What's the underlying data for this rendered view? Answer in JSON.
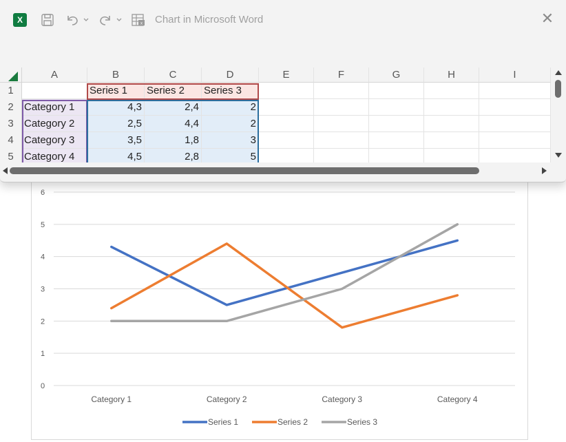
{
  "window": {
    "title": "Chart in Microsoft Word",
    "app_icon_letter": "X",
    "close_glyph": "✕"
  },
  "icons": {
    "save": "save-icon",
    "undo": "undo-icon",
    "redo": "redo-icon",
    "edit_data": "edit-data-in-excel-icon"
  },
  "grid": {
    "columns": [
      "A",
      "B",
      "C",
      "D",
      "E",
      "F",
      "G",
      "H",
      "I"
    ],
    "rows": [
      "1",
      "2",
      "3",
      "4",
      "5"
    ],
    "header": [
      "",
      "Series 1",
      "Series 2",
      "Series 3"
    ],
    "data": [
      [
        "Category 1",
        "4,3",
        "2,4",
        "2"
      ],
      [
        "Category 2",
        "2,5",
        "4,4",
        "2"
      ],
      [
        "Category 3",
        "3,5",
        "1,8",
        "3"
      ],
      [
        "Category 4",
        "4,5",
        "2,8",
        "5"
      ]
    ]
  },
  "chart_data": {
    "type": "line",
    "categories": [
      "Category 1",
      "Category 2",
      "Category 3",
      "Category 4"
    ],
    "series": [
      {
        "name": "Series 1",
        "values": [
          4.3,
          2.5,
          3.5,
          4.5
        ],
        "color": "#4472c4"
      },
      {
        "name": "Series 2",
        "values": [
          2.4,
          4.4,
          1.8,
          2.8
        ],
        "color": "#ed7d31"
      },
      {
        "name": "Series 3",
        "values": [
          2,
          2,
          3,
          5
        ],
        "color": "#a5a5a5"
      }
    ],
    "ylim": [
      0,
      6
    ],
    "yticks": [
      "0",
      "1",
      "2",
      "3",
      "4",
      "5",
      "6"
    ],
    "grid": true,
    "legend": "bottom"
  }
}
